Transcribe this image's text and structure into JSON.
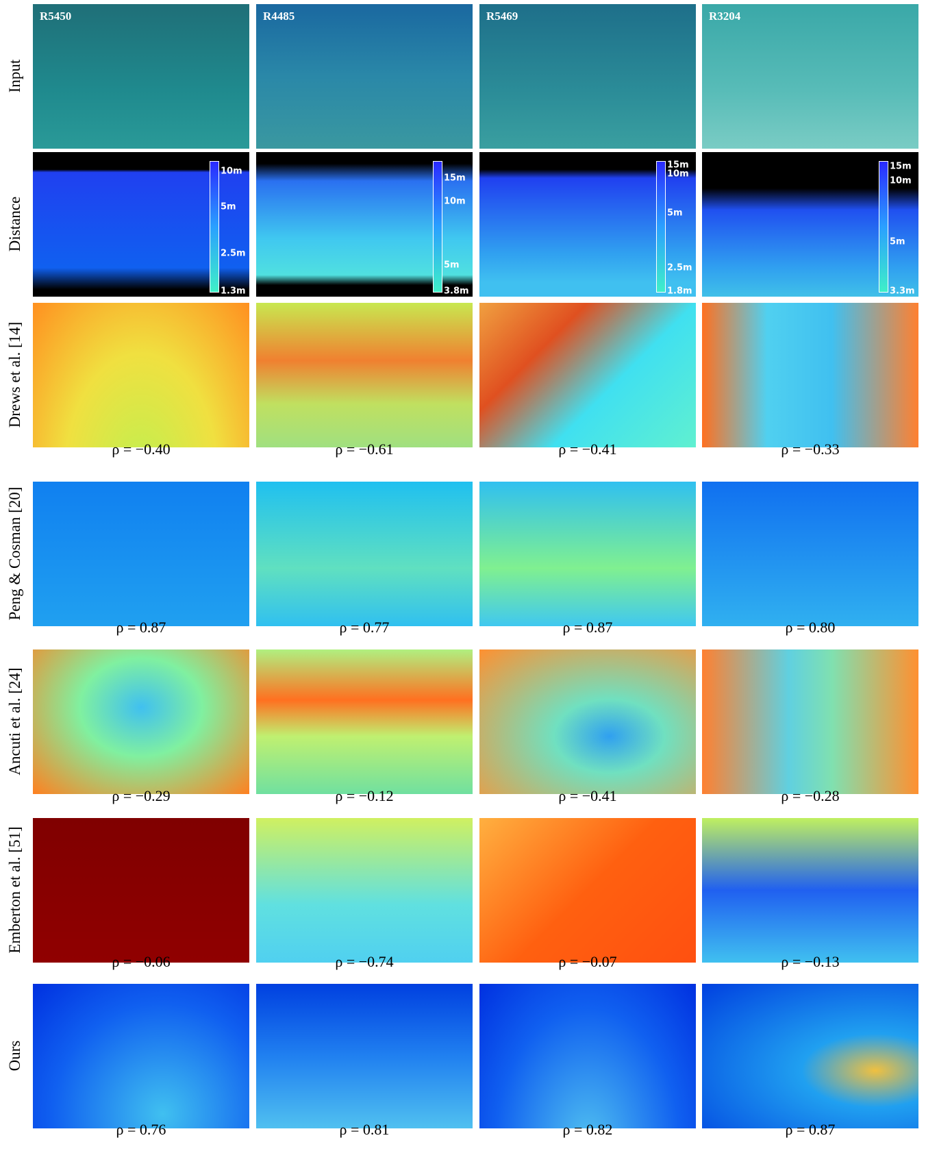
{
  "columns": [
    "R5450",
    "R4485",
    "R5469",
    "R3204"
  ],
  "rows": [
    {
      "label": "Input"
    },
    {
      "label": "Distance",
      "colorbars": [
        [
          "10m",
          "5m",
          "2.5m",
          "1.3m"
        ],
        [
          "15m",
          "10m",
          "5m",
          "3.8m"
        ],
        [
          "15m",
          "10m",
          "5m",
          "2.5m",
          "1.8m"
        ],
        [
          "15m",
          "10m",
          "5m",
          "3.3m"
        ]
      ]
    },
    {
      "label": "Drews et al. [14]",
      "rho": [
        "ρ = −0.40",
        "ρ = −0.61",
        "ρ = −0.41",
        "ρ = −0.33"
      ]
    },
    {
      "label": "Peng & Cosman [20]",
      "rho": [
        "ρ = 0.87",
        "ρ = 0.77",
        "ρ = 0.87",
        "ρ = 0.80"
      ]
    },
    {
      "label": "Ancuti et al. [24]",
      "rho": [
        "ρ = −0.29",
        "ρ = −0.12",
        "ρ = −0.41",
        "ρ = −0.28"
      ]
    },
    {
      "label": "Emberton et al. [51]",
      "rho": [
        "ρ = −0.06",
        "ρ = −0.74",
        "ρ = −0.07",
        "ρ = −0.13"
      ]
    },
    {
      "label": "Ours",
      "rho": [
        "ρ = 0.76",
        "ρ = 0.81",
        "ρ = 0.82",
        "ρ = 0.87"
      ]
    }
  ]
}
